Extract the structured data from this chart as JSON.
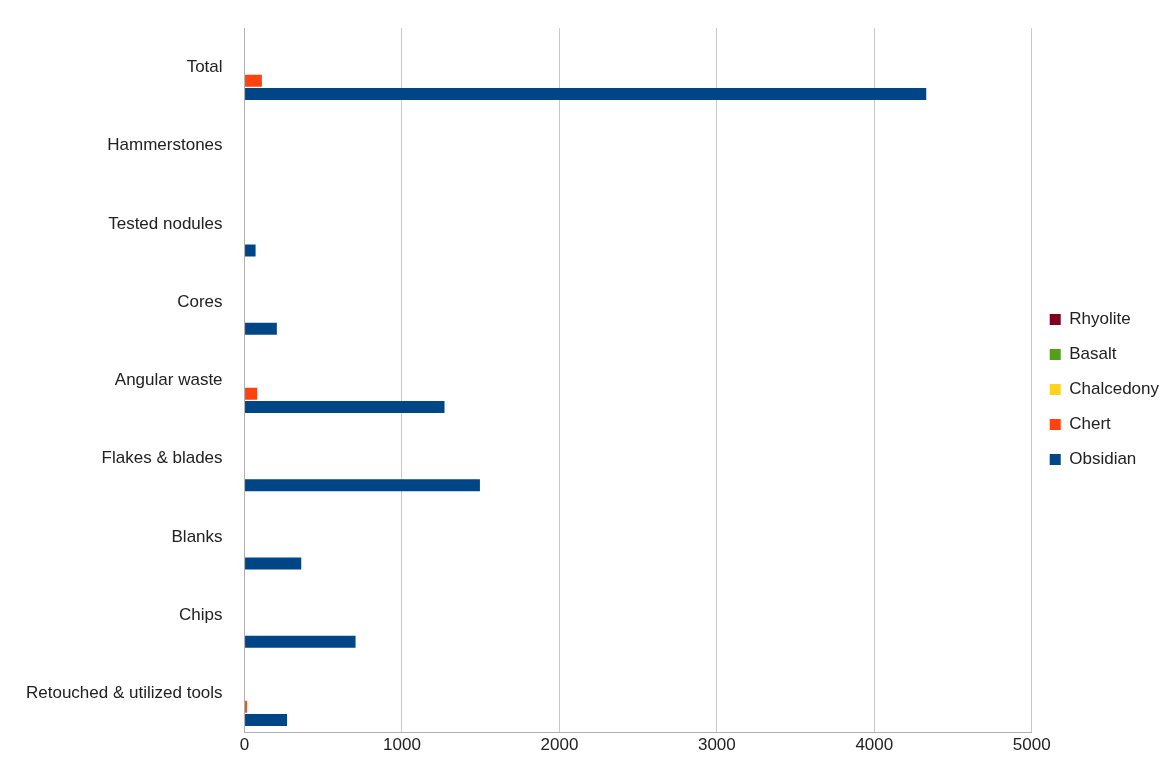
{
  "chart_data": {
    "type": "bar",
    "orientation": "horizontal",
    "categories": [
      "Total",
      "Hammerstones",
      "Tested nodules",
      "Cores",
      "Angular waste",
      "Flakes & blades",
      "Blanks",
      "Chips",
      "Retouched & utilized tools"
    ],
    "series": [
      {
        "name": "Rhyolite",
        "color": "#7e0021",
        "values": [
          0,
          0,
          0,
          0,
          0,
          0,
          0,
          0,
          0
        ]
      },
      {
        "name": "Basalt",
        "color": "#579d1c",
        "values": [
          0,
          0,
          0,
          0,
          0,
          0,
          0,
          0,
          0
        ]
      },
      {
        "name": "Chalcedony",
        "color": "#ffd320",
        "values": [
          0,
          0,
          0,
          0,
          0,
          0,
          0,
          0,
          0
        ]
      },
      {
        "name": "Chert",
        "color": "#ff420e",
        "values": [
          110,
          0,
          0,
          0,
          80,
          0,
          0,
          0,
          15
        ]
      },
      {
        "name": "Obsidian",
        "color": "#004586",
        "values": [
          4330,
          0,
          70,
          205,
          1270,
          1495,
          360,
          705,
          270
        ]
      }
    ],
    "xlim": [
      0,
      5000
    ],
    "xticks": [
      0,
      1000,
      2000,
      3000,
      4000,
      5000
    ],
    "grid": "x",
    "legend": "right"
  }
}
